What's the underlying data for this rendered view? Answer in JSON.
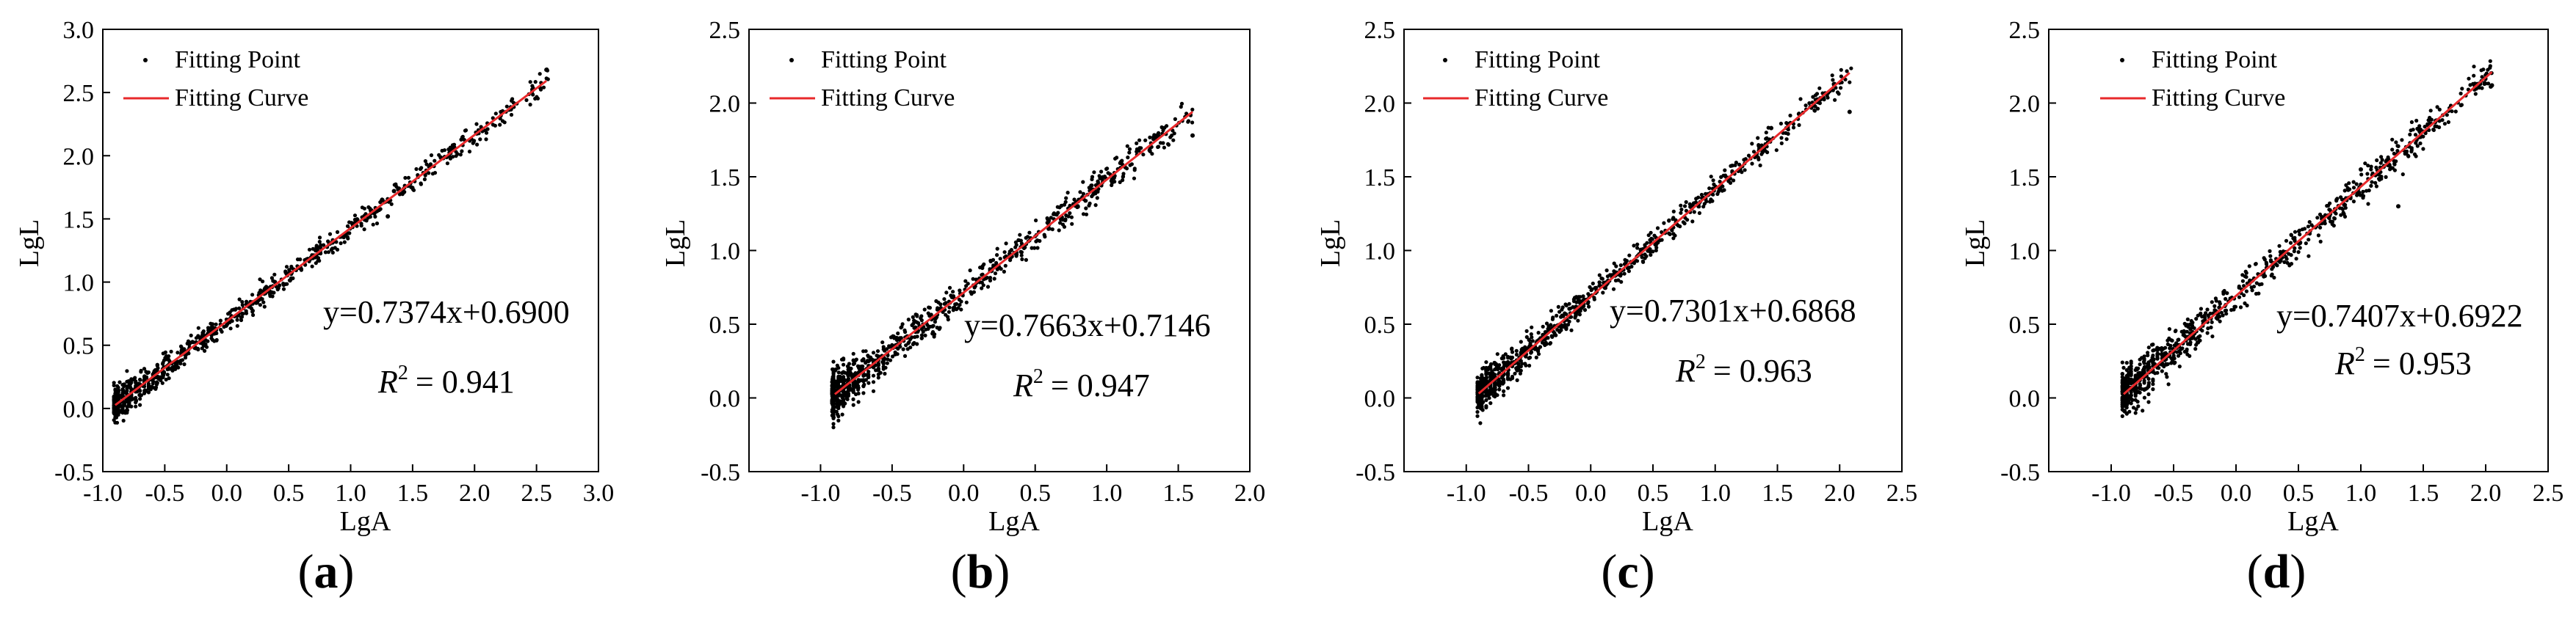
{
  "chart_data": [
    {
      "type": "scatter",
      "panel_label": "a",
      "xlabel": "LgA",
      "ylabel": "LgL",
      "xlim": [
        -1.0,
        3.0
      ],
      "ylim": [
        -0.5,
        3.0
      ],
      "xticks": [
        "-1.0",
        "-0.5",
        "0.0",
        "0.5",
        "1.0",
        "1.5",
        "2.0",
        "2.5",
        "3.0"
      ],
      "yticks": [
        "-0.5",
        "0.0",
        "0.5",
        "1.0",
        "1.5",
        "2.0",
        "2.5",
        "3.0"
      ],
      "legend": {
        "point": "Fitting Point",
        "curve": "Fitting Curve",
        "placement": "top-left"
      },
      "fit": {
        "slope": 0.7374,
        "intercept": 0.69,
        "x_range": [
          -0.9,
          2.58
        ]
      },
      "equation": "y=0.7374x+0.6900",
      "r2_label": "R",
      "r2_sup": "2",
      "r2_value": "= 0.941",
      "point_x_range": [
        -0.9,
        2.6
      ],
      "noise": 0.075,
      "outliers": [
        [
          2.58,
          2.68
        ],
        [
          1.35,
          1.72
        ],
        [
          1.3,
          1.52
        ]
      ]
    },
    {
      "type": "scatter",
      "panel_label": "b",
      "xlabel": "LgA",
      "ylabel": "LgL",
      "xlim": [
        -1.5,
        2.0
      ],
      "ylim": [
        -0.5,
        2.5
      ],
      "xticks": [
        "-1.0",
        "-0.5",
        "0.0",
        "0.5",
        "1.0",
        "1.5",
        "2.0"
      ],
      "yticks": [
        "-0.5",
        "0.0",
        "0.5",
        "1.0",
        "1.5",
        "2.0",
        "2.5"
      ],
      "legend": {
        "point": "Fitting Point",
        "curve": "Fitting Curve",
        "placement": "top-left"
      },
      "fit": {
        "slope": 0.7663,
        "intercept": 0.7146,
        "x_range": [
          -0.9,
          1.6
        ]
      },
      "equation": "y=0.7663x+0.7146",
      "r2_label": "R",
      "r2_sup": "2",
      "r2_value": "= 0.947",
      "point_x_range": [
        -0.92,
        1.6
      ],
      "noise": 0.085,
      "outliers": [
        [
          1.6,
          1.78
        ],
        [
          1.3,
          1.68
        ],
        [
          1.1,
          1.6
        ]
      ]
    },
    {
      "type": "scatter",
      "panel_label": "c",
      "xlabel": "LgA",
      "ylabel": "LgL",
      "xlim": [
        -1.5,
        2.5
      ],
      "ylim": [
        -0.5,
        2.5
      ],
      "xticks": [
        "-1.0",
        "-0.5",
        "0.0",
        "0.5",
        "1.0",
        "1.5",
        "2.0",
        "2.5"
      ],
      "yticks": [
        "-0.5",
        "0.0",
        "0.5",
        "1.0",
        "1.5",
        "2.0",
        "2.5"
      ],
      "legend": {
        "point": "Fitting Point",
        "curve": "Fitting Curve",
        "placement": "top-left"
      },
      "fit": {
        "slope": 0.7301,
        "intercept": 0.6868,
        "x_range": [
          -0.9,
          2.08
        ]
      },
      "equation": "y=0.7301x+0.6868",
      "r2_label": "R",
      "r2_sup": "2",
      "r2_value": "= 0.963",
      "point_x_range": [
        -0.9,
        2.1
      ],
      "noise": 0.07,
      "outliers": [
        [
          2.08,
          1.94
        ],
        [
          1.45,
          1.83
        ],
        [
          1.2,
          1.55
        ]
      ]
    },
    {
      "type": "scatter",
      "panel_label": "d",
      "xlabel": "LgA",
      "ylabel": "LgL",
      "xlim": [
        -1.5,
        2.5
      ],
      "ylim": [
        -0.5,
        2.5
      ],
      "xticks": [
        "-1.0",
        "-0.5",
        "0.0",
        "0.5",
        "1.0",
        "1.5",
        "2.0",
        "2.5"
      ],
      "yticks": [
        "-0.5",
        "0.0",
        "0.5",
        "1.0",
        "1.5",
        "2.0",
        "2.5"
      ],
      "legend": {
        "point": "Fitting Point",
        "curve": "Fitting Curve",
        "placement": "top-left"
      },
      "fit": {
        "slope": 0.7407,
        "intercept": 0.6922,
        "x_range": [
          -0.9,
          2.05
        ]
      },
      "equation": "y=0.7407x+0.6922",
      "r2_label": "R",
      "r2_sup": "2",
      "r2_value": "= 0.953",
      "point_x_range": [
        -0.9,
        2.05
      ],
      "noise": 0.09,
      "outliers": [
        [
          2.05,
          2.12
        ],
        [
          1.6,
          1.88
        ],
        [
          1.3,
          1.3
        ],
        [
          1.0,
          1.55
        ]
      ]
    }
  ]
}
